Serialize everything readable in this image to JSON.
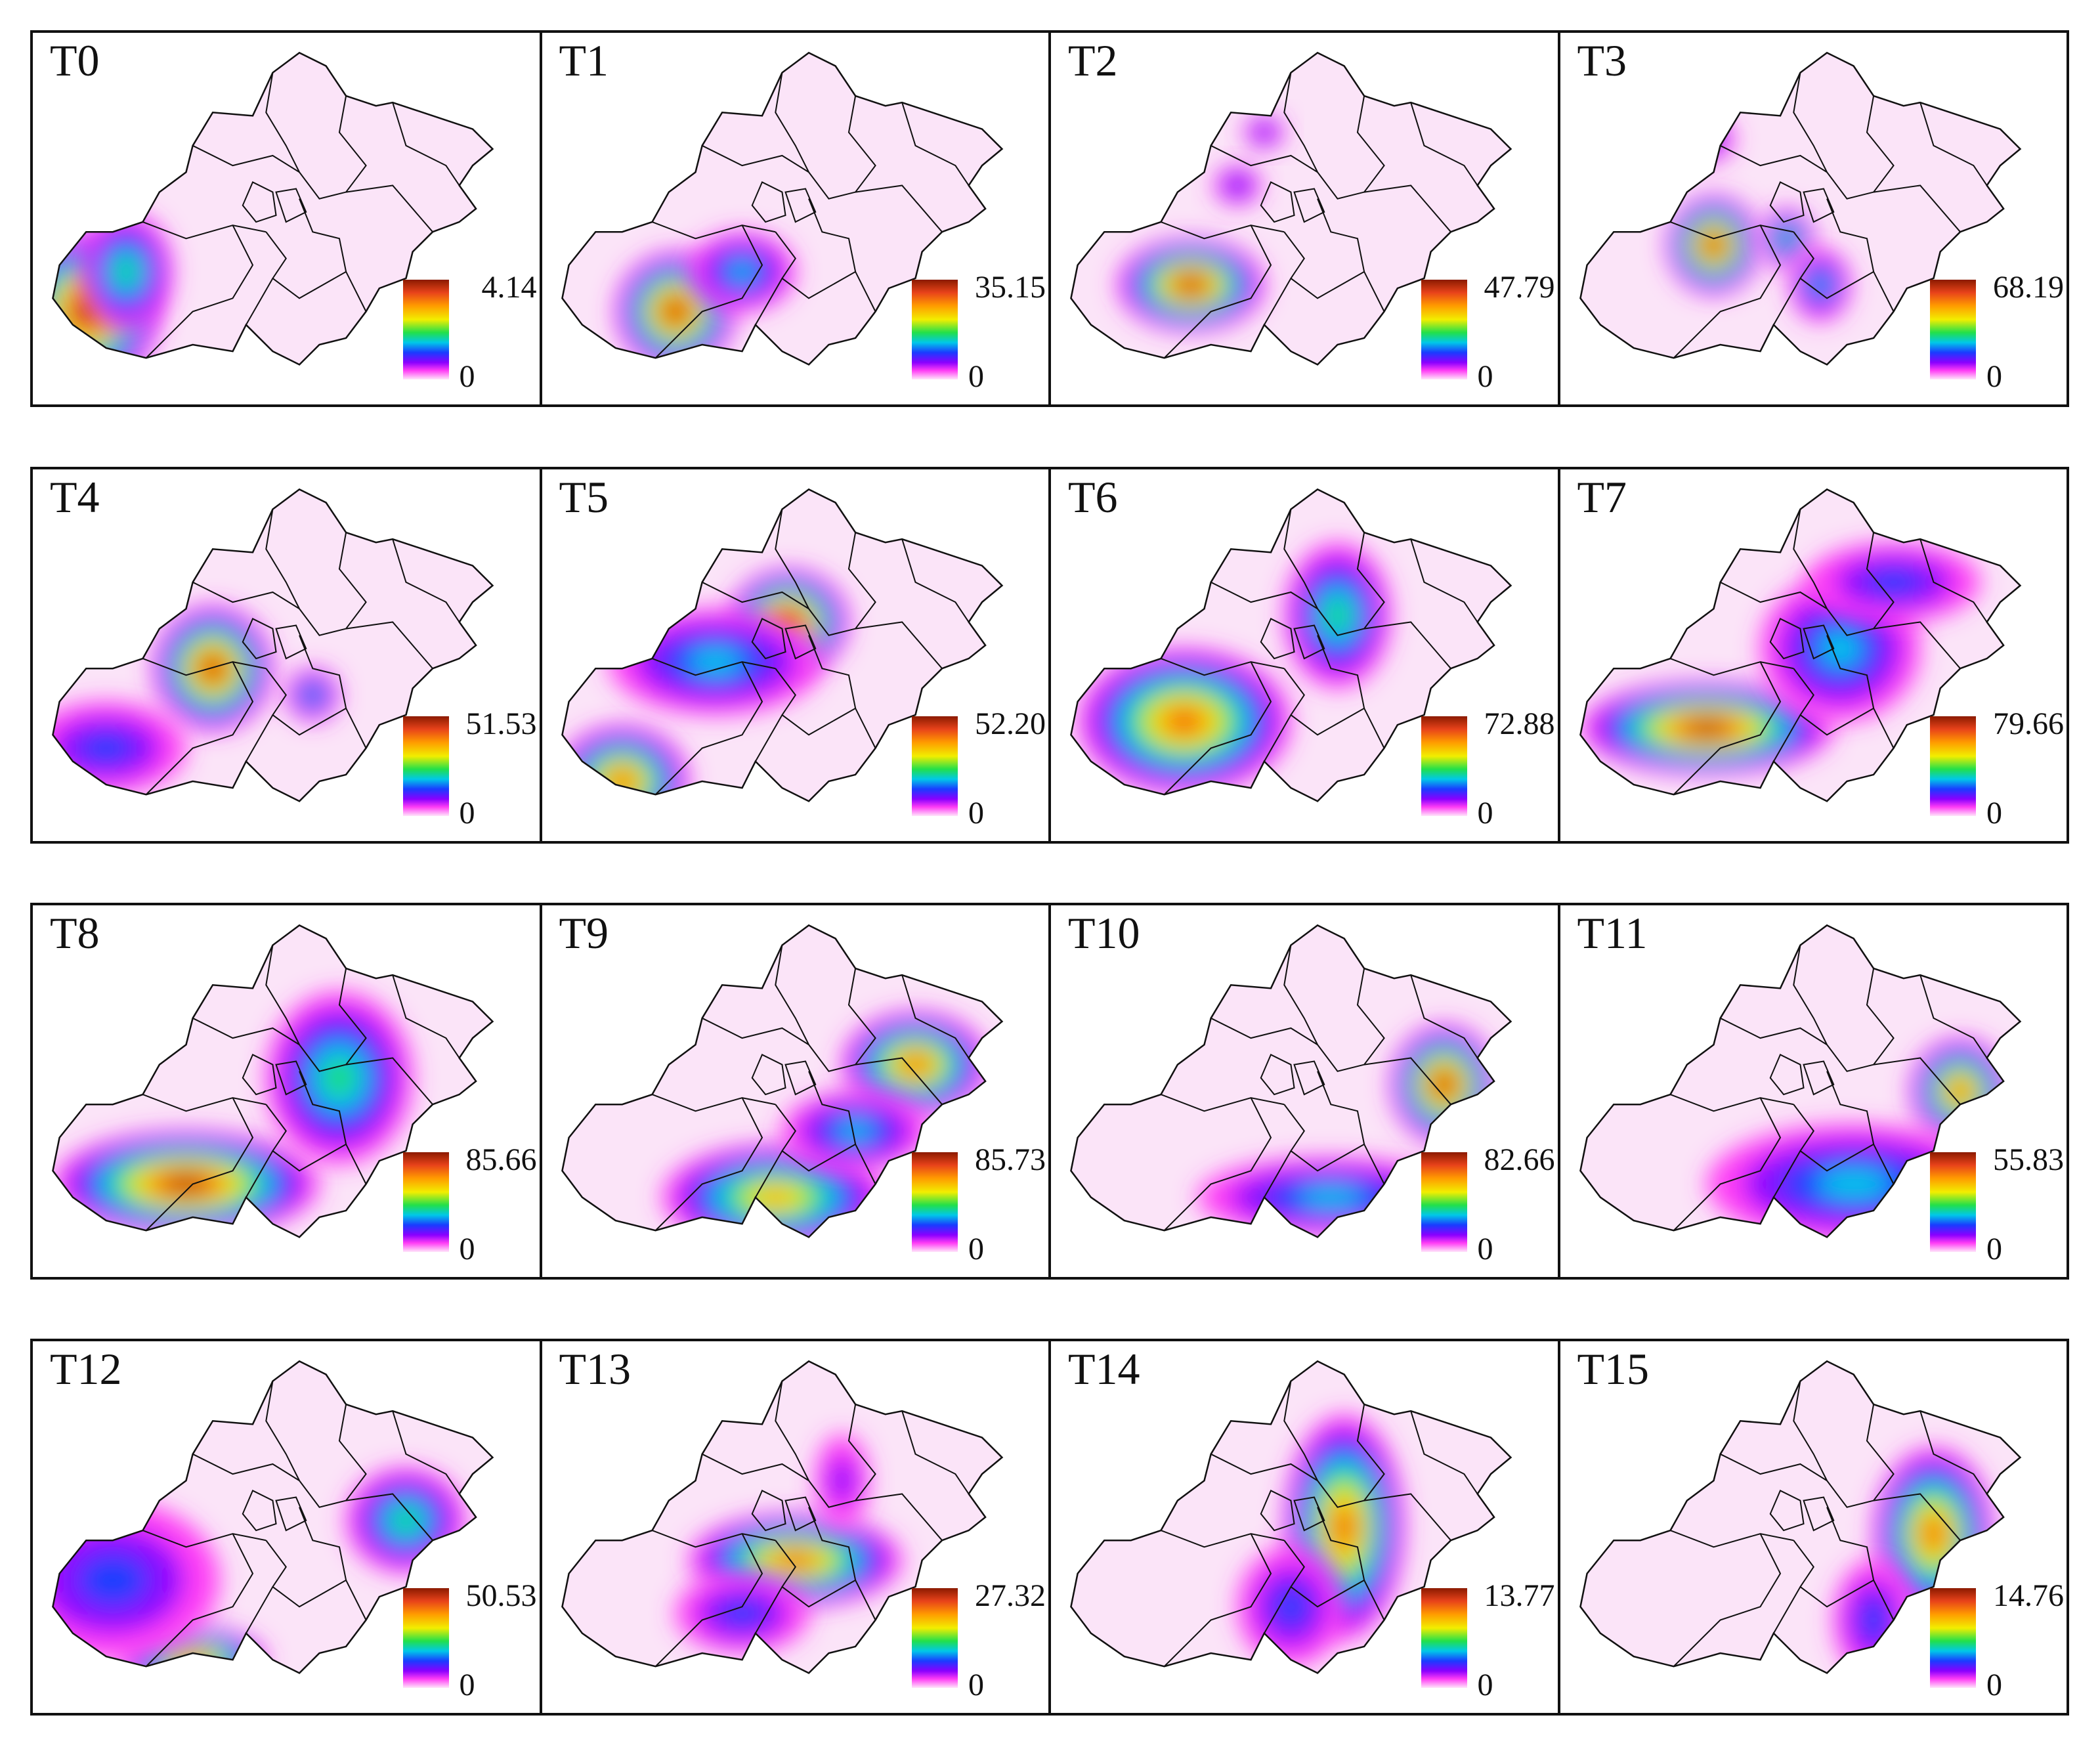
{
  "panels": [
    {
      "label": "T0",
      "max": "4.14",
      "min": "0"
    },
    {
      "label": "T1",
      "max": "35.15",
      "min": "0"
    },
    {
      "label": "T2",
      "max": "47.79",
      "min": "0"
    },
    {
      "label": "T3",
      "max": "68.19",
      "min": "0"
    },
    {
      "label": "T4",
      "max": "51.53",
      "min": "0"
    },
    {
      "label": "T5",
      "max": "52.20",
      "min": "0"
    },
    {
      "label": "T6",
      "max": "72.88",
      "min": "0"
    },
    {
      "label": "T7",
      "max": "79.66",
      "min": "0"
    },
    {
      "label": "T8",
      "max": "85.66",
      "min": "0"
    },
    {
      "label": "T9",
      "max": "85.73",
      "min": "0"
    },
    {
      "label": "T10",
      "max": "82.66",
      "min": "0"
    },
    {
      "label": "T11",
      "max": "55.83",
      "min": "0"
    },
    {
      "label": "T12",
      "max": "50.53",
      "min": "0"
    },
    {
      "label": "T13",
      "max": "27.32",
      "min": "0"
    },
    {
      "label": "T14",
      "max": "13.77",
      "min": "0"
    },
    {
      "label": "T15",
      "max": "14.76",
      "min": "0"
    }
  ],
  "colors": {
    "scale": [
      "#ffe6fa",
      "#ff3df5",
      "#8a00ff",
      "#1a3cff",
      "#00c8e8",
      "#22e04a",
      "#f2ee00",
      "#ff9a00",
      "#e8431a",
      "#8b1a00"
    ],
    "boundary": "#111111"
  }
}
